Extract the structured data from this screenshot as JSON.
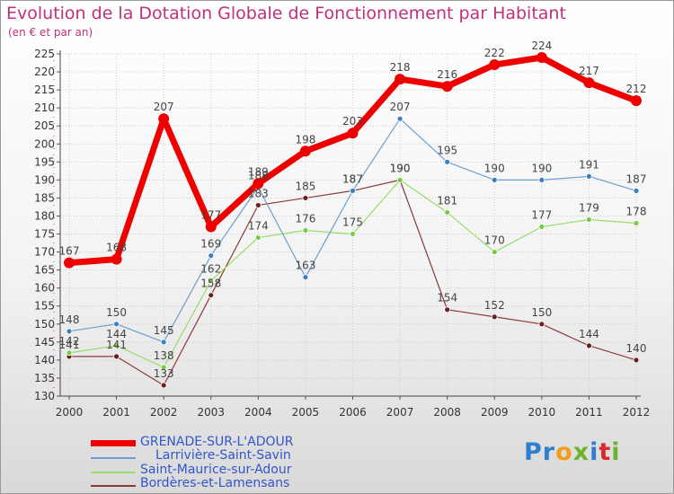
{
  "title": "Evolution de la Dotation Globale de Fonctionnement par Habitant",
  "subtitle": "(en € et par an)",
  "logo": {
    "text": "ProXiti",
    "letters": [
      "P",
      "r",
      "o",
      "x",
      "i",
      "t",
      "i"
    ],
    "colors": [
      "#2e7fd0",
      "#2e7fd0",
      "#f29b1d",
      "#6ab32e",
      "#2e7fd0",
      "#d9282f",
      "#6ab32e"
    ]
  },
  "chart_data": {
    "type": "line",
    "title": "Evolution de la Dotation Globale de Fonctionnement par Habitant",
    "subtitle": "(en € et par an)",
    "xlabel": "",
    "ylabel": "",
    "ylim": [
      130,
      225
    ],
    "yticks": [
      130,
      135,
      140,
      145,
      150,
      155,
      160,
      165,
      170,
      175,
      180,
      185,
      190,
      195,
      200,
      205,
      210,
      215,
      220,
      225
    ],
    "categories": [
      "2000",
      "2001",
      "2002",
      "2003",
      "2004",
      "2005",
      "2006",
      "2007",
      "2008",
      "2009",
      "2010",
      "2011",
      "2012"
    ],
    "series": [
      {
        "name": "GRENADE-SUR-L'ADOUR",
        "color": "#ee0000",
        "labelColor": "#444444",
        "legendColor": "#3355cc",
        "lineWidth": 7,
        "markerRadius": 6,
        "values": [
          167,
          168,
          207,
          177,
          189,
          198,
          203,
          218,
          216,
          222,
          224,
          217,
          212
        ],
        "labels": [
          "167",
          "168",
          "207",
          "177",
          "189",
          "198",
          "203",
          "218",
          "216",
          "222",
          "224",
          "217",
          "212"
        ]
      },
      {
        "name": "Larrivière-Saint-Savin",
        "color": "#6a9fd0",
        "labelColor": "#444444",
        "legendColor": "#3355cc",
        "lineWidth": 1.2,
        "markerRadius": 3,
        "values": [
          148,
          150,
          145,
          169,
          188,
          163,
          187,
          207,
          195,
          190,
          190,
          191,
          187
        ],
        "labels": [
          "148",
          "150",
          "145",
          "169",
          "188",
          "163",
          "187",
          "207",
          "195",
          "190",
          "190",
          "191",
          "187"
        ]
      },
      {
        "name": "Saint-Maurice-sur-Adour",
        "color": "#99dd66",
        "labelColor": "#444444",
        "legendColor": "#3355cc",
        "lineWidth": 1.2,
        "markerRadius": 3,
        "values": [
          142,
          144,
          138,
          162,
          174,
          176,
          175,
          190,
          181,
          170,
          177,
          179,
          178
        ],
        "labels": [
          "142",
          "144",
          "138",
          "162",
          "174",
          "176",
          "175",
          "190",
          "181",
          "170",
          "177",
          "179",
          "178"
        ]
      },
      {
        "name": "Bordères-et-Lamensans",
        "color": "#8b3a3a",
        "labelColor": "#444444",
        "legendColor": "#3355cc",
        "lineWidth": 1.2,
        "markerRadius": 3,
        "values": [
          141,
          141,
          133,
          158,
          183,
          185,
          187,
          190,
          154,
          152,
          150,
          144,
          140
        ],
        "labels": [
          "141",
          "141",
          "133",
          "158",
          "183",
          "185",
          "187",
          "190",
          "154",
          "152",
          "150",
          "144",
          "140"
        ]
      }
    ]
  }
}
